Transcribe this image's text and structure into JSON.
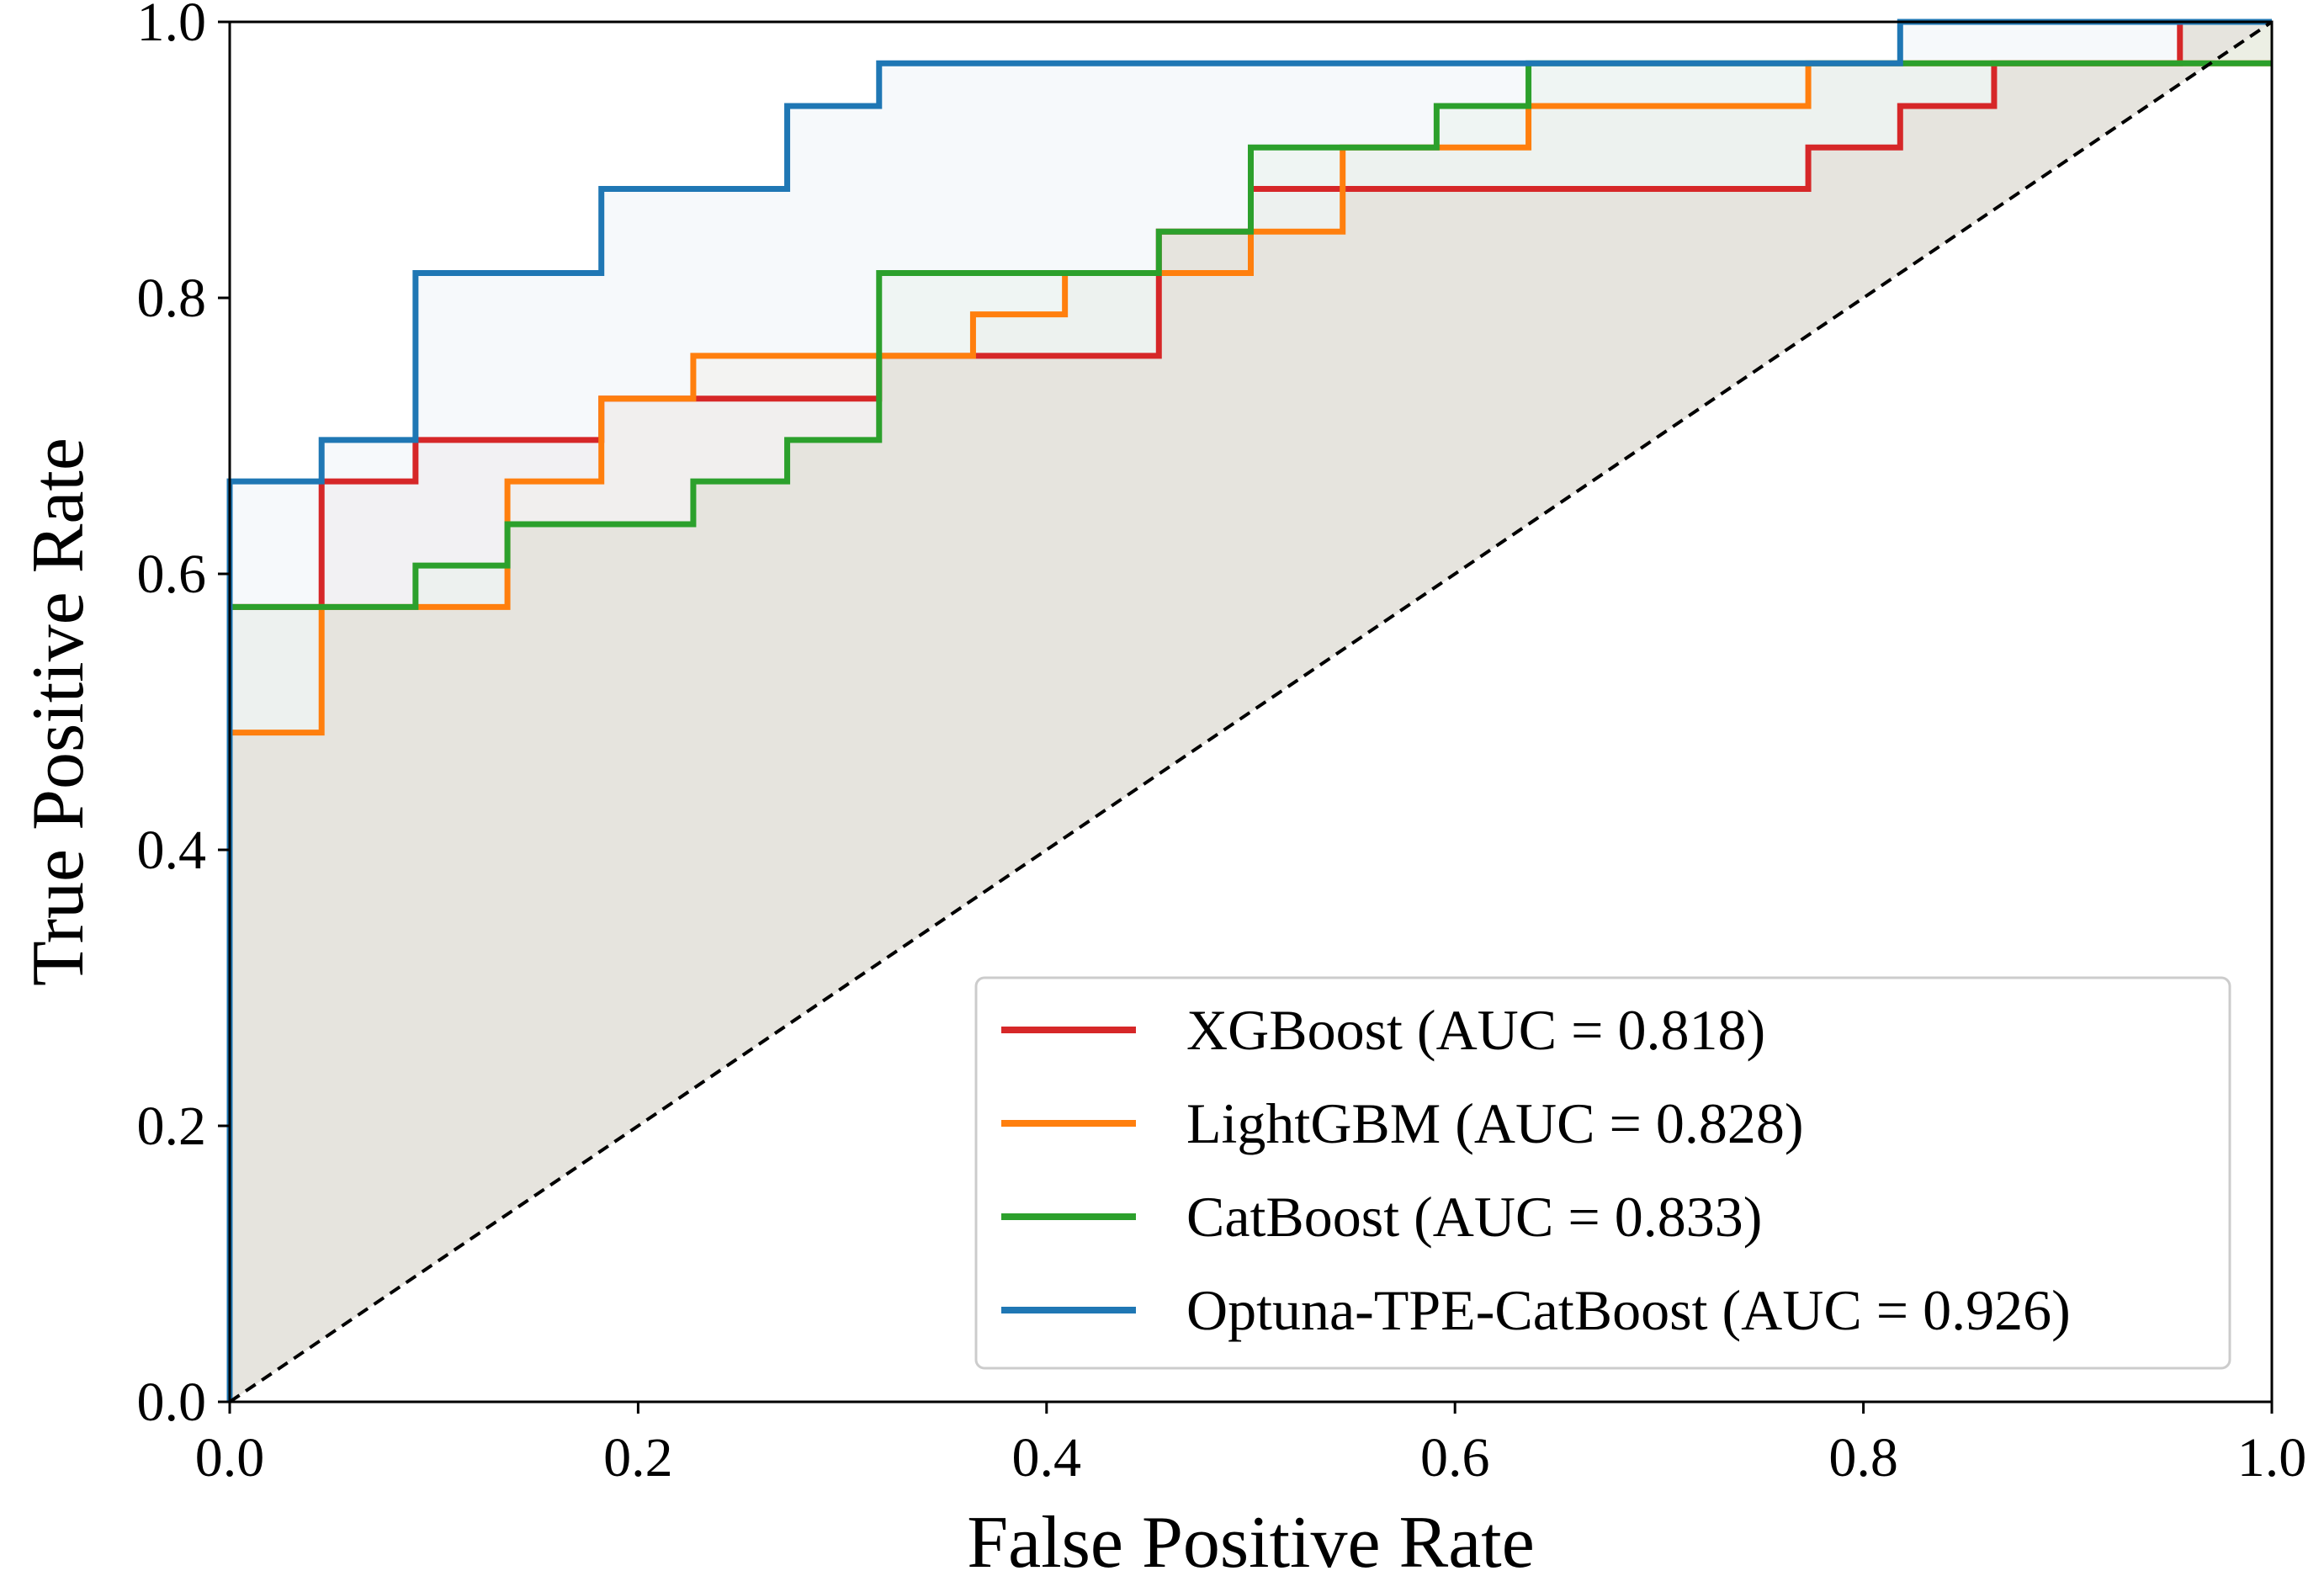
{
  "chart_data": {
    "type": "line",
    "title": "",
    "xlabel": "False Positive Rate",
    "ylabel": "True Positive Rate",
    "xlim": [
      0.0,
      1.0
    ],
    "ylim": [
      0.0,
      1.0
    ],
    "xticks": [
      "0.0",
      "0.2",
      "0.4",
      "0.6",
      "0.8",
      "1.0"
    ],
    "yticks": [
      "0.0",
      "0.2",
      "0.4",
      "0.6",
      "0.8",
      "1.0"
    ],
    "grid": false,
    "legend_position": "bottom-right",
    "reference_line": {
      "x": [
        0,
        1
      ],
      "y": [
        0,
        1
      ],
      "style": "dashed",
      "color": "#000000"
    },
    "series": [
      {
        "name": "XGBoost (AUC = 0.818)",
        "color": "#d62728",
        "fill": "#f0dede",
        "x": [
          0,
          0,
          0.045,
          0.045,
          0.091,
          0.091,
          0.182,
          0.182,
          0.227,
          0.227,
          0.318,
          0.318,
          0.364,
          0.364,
          0.455,
          0.455,
          0.5,
          0.5,
          0.773,
          0.773,
          0.818,
          0.818,
          0.864,
          0.864,
          0.955,
          0.955,
          1.0
        ],
        "y": [
          0,
          0.576,
          0.576,
          0.667,
          0.667,
          0.697,
          0.697,
          0.727,
          0.727,
          0.727,
          0.727,
          0.758,
          0.758,
          0.758,
          0.758,
          0.848,
          0.848,
          0.879,
          0.879,
          0.909,
          0.909,
          0.939,
          0.939,
          0.97,
          0.97,
          1.0,
          1.0
        ]
      },
      {
        "name": "LightGBM (AUC = 0.828)",
        "color": "#ff7f0e",
        "fill": "#f3e6d9",
        "x": [
          0,
          0,
          0.045,
          0.045,
          0.136,
          0.136,
          0.182,
          0.182,
          0.227,
          0.227,
          0.364,
          0.364,
          0.409,
          0.409,
          0.5,
          0.5,
          0.545,
          0.545,
          0.591,
          0.591,
          0.636,
          0.636,
          0.773,
          0.773,
          1.0
        ],
        "y": [
          0,
          0.485,
          0.485,
          0.576,
          0.576,
          0.667,
          0.667,
          0.727,
          0.727,
          0.758,
          0.758,
          0.788,
          0.788,
          0.818,
          0.818,
          0.848,
          0.848,
          0.909,
          0.909,
          0.909,
          0.909,
          0.939,
          0.939,
          0.97,
          0.97
        ]
      },
      {
        "name": "CatBoost (AUC = 0.833)",
        "color": "#2ca02c",
        "fill": "#e2ecdf",
        "x": [
          0,
          0,
          0.091,
          0.091,
          0.136,
          0.136,
          0.227,
          0.227,
          0.273,
          0.273,
          0.318,
          0.318,
          0.455,
          0.455,
          0.5,
          0.5,
          0.591,
          0.591,
          0.636,
          0.636,
          1.0
        ],
        "y": [
          0,
          0.576,
          0.576,
          0.606,
          0.606,
          0.636,
          0.636,
          0.667,
          0.667,
          0.697,
          0.697,
          0.818,
          0.818,
          0.848,
          0.848,
          0.909,
          0.909,
          0.939,
          0.939,
          0.97,
          0.97
        ]
      },
      {
        "name": "Optuna-TPE-CatBoost (AUC = 0.926)",
        "color": "#1f77b4",
        "fill": "#eef4f8",
        "x": [
          0,
          0,
          0.045,
          0.045,
          0.091,
          0.091,
          0.182,
          0.182,
          0.273,
          0.273,
          0.318,
          0.318,
          0.818,
          0.818,
          1.0
        ],
        "y": [
          0,
          0.667,
          0.667,
          0.697,
          0.697,
          0.818,
          0.818,
          0.879,
          0.879,
          0.939,
          0.939,
          0.97,
          0.97,
          1.0,
          1.0
        ]
      }
    ]
  }
}
